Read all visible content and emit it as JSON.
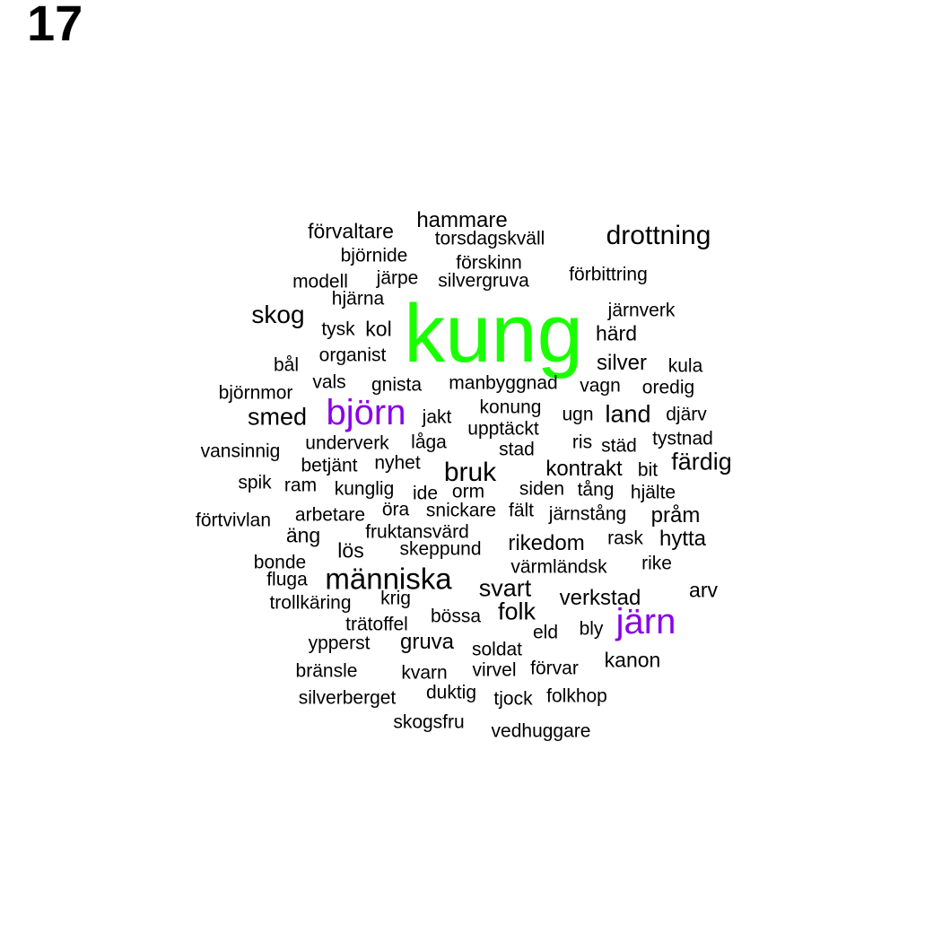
{
  "page_number": "17",
  "colors": {
    "default": "#000000",
    "highlight": "#1aff00",
    "accent": "#8a00e6"
  },
  "words": [
    "kung",
    "björn",
    "järn",
    "drottning",
    "skog",
    "människa",
    "bruk",
    "smed",
    "svart",
    "folk",
    "land",
    "färdig",
    "hammare",
    "silver",
    "gruva",
    "rikedom",
    "kontrakt",
    "verkstad",
    "hytta",
    "pråm",
    "förvaltare",
    "arv",
    "kanon",
    "kol",
    "härd",
    "äng",
    "lös",
    "torsdagskväll",
    "förskinn",
    "björnide",
    "förbittring",
    "modell",
    "järpe",
    "silvergruva",
    "hjärna",
    "järnverk",
    "tysk",
    "organist",
    "bål",
    "kula",
    "vals",
    "gnista",
    "manbyggnad",
    "vagn",
    "oredig",
    "björnmor",
    "konung",
    "jakt",
    "ugn",
    "djärv",
    "upptäckt",
    "låga",
    "underverk",
    "vansinnig",
    "stad",
    "ris",
    "städ",
    "tystnad",
    "betjänt",
    "nyhet",
    "bit",
    "spik",
    "ram",
    "kunglig",
    "ide",
    "orm",
    "siden",
    "tång",
    "hjälte",
    "förtvivlan",
    "arbetare",
    "öra",
    "snickare",
    "fält",
    "järnstång",
    "fruktansvärd",
    "rask",
    "skeppund",
    "bonde",
    "värmländsk",
    "rike",
    "fluga",
    "trollkäring",
    "krig",
    "trätoffel",
    "bössa",
    "eld",
    "bly",
    "ypperst",
    "soldat",
    "bränsle",
    "kvarn",
    "virvel",
    "förvar",
    "duktig",
    "silverberget",
    "tjock",
    "folkhop",
    "skogsfru",
    "vedhuggare"
  ]
}
